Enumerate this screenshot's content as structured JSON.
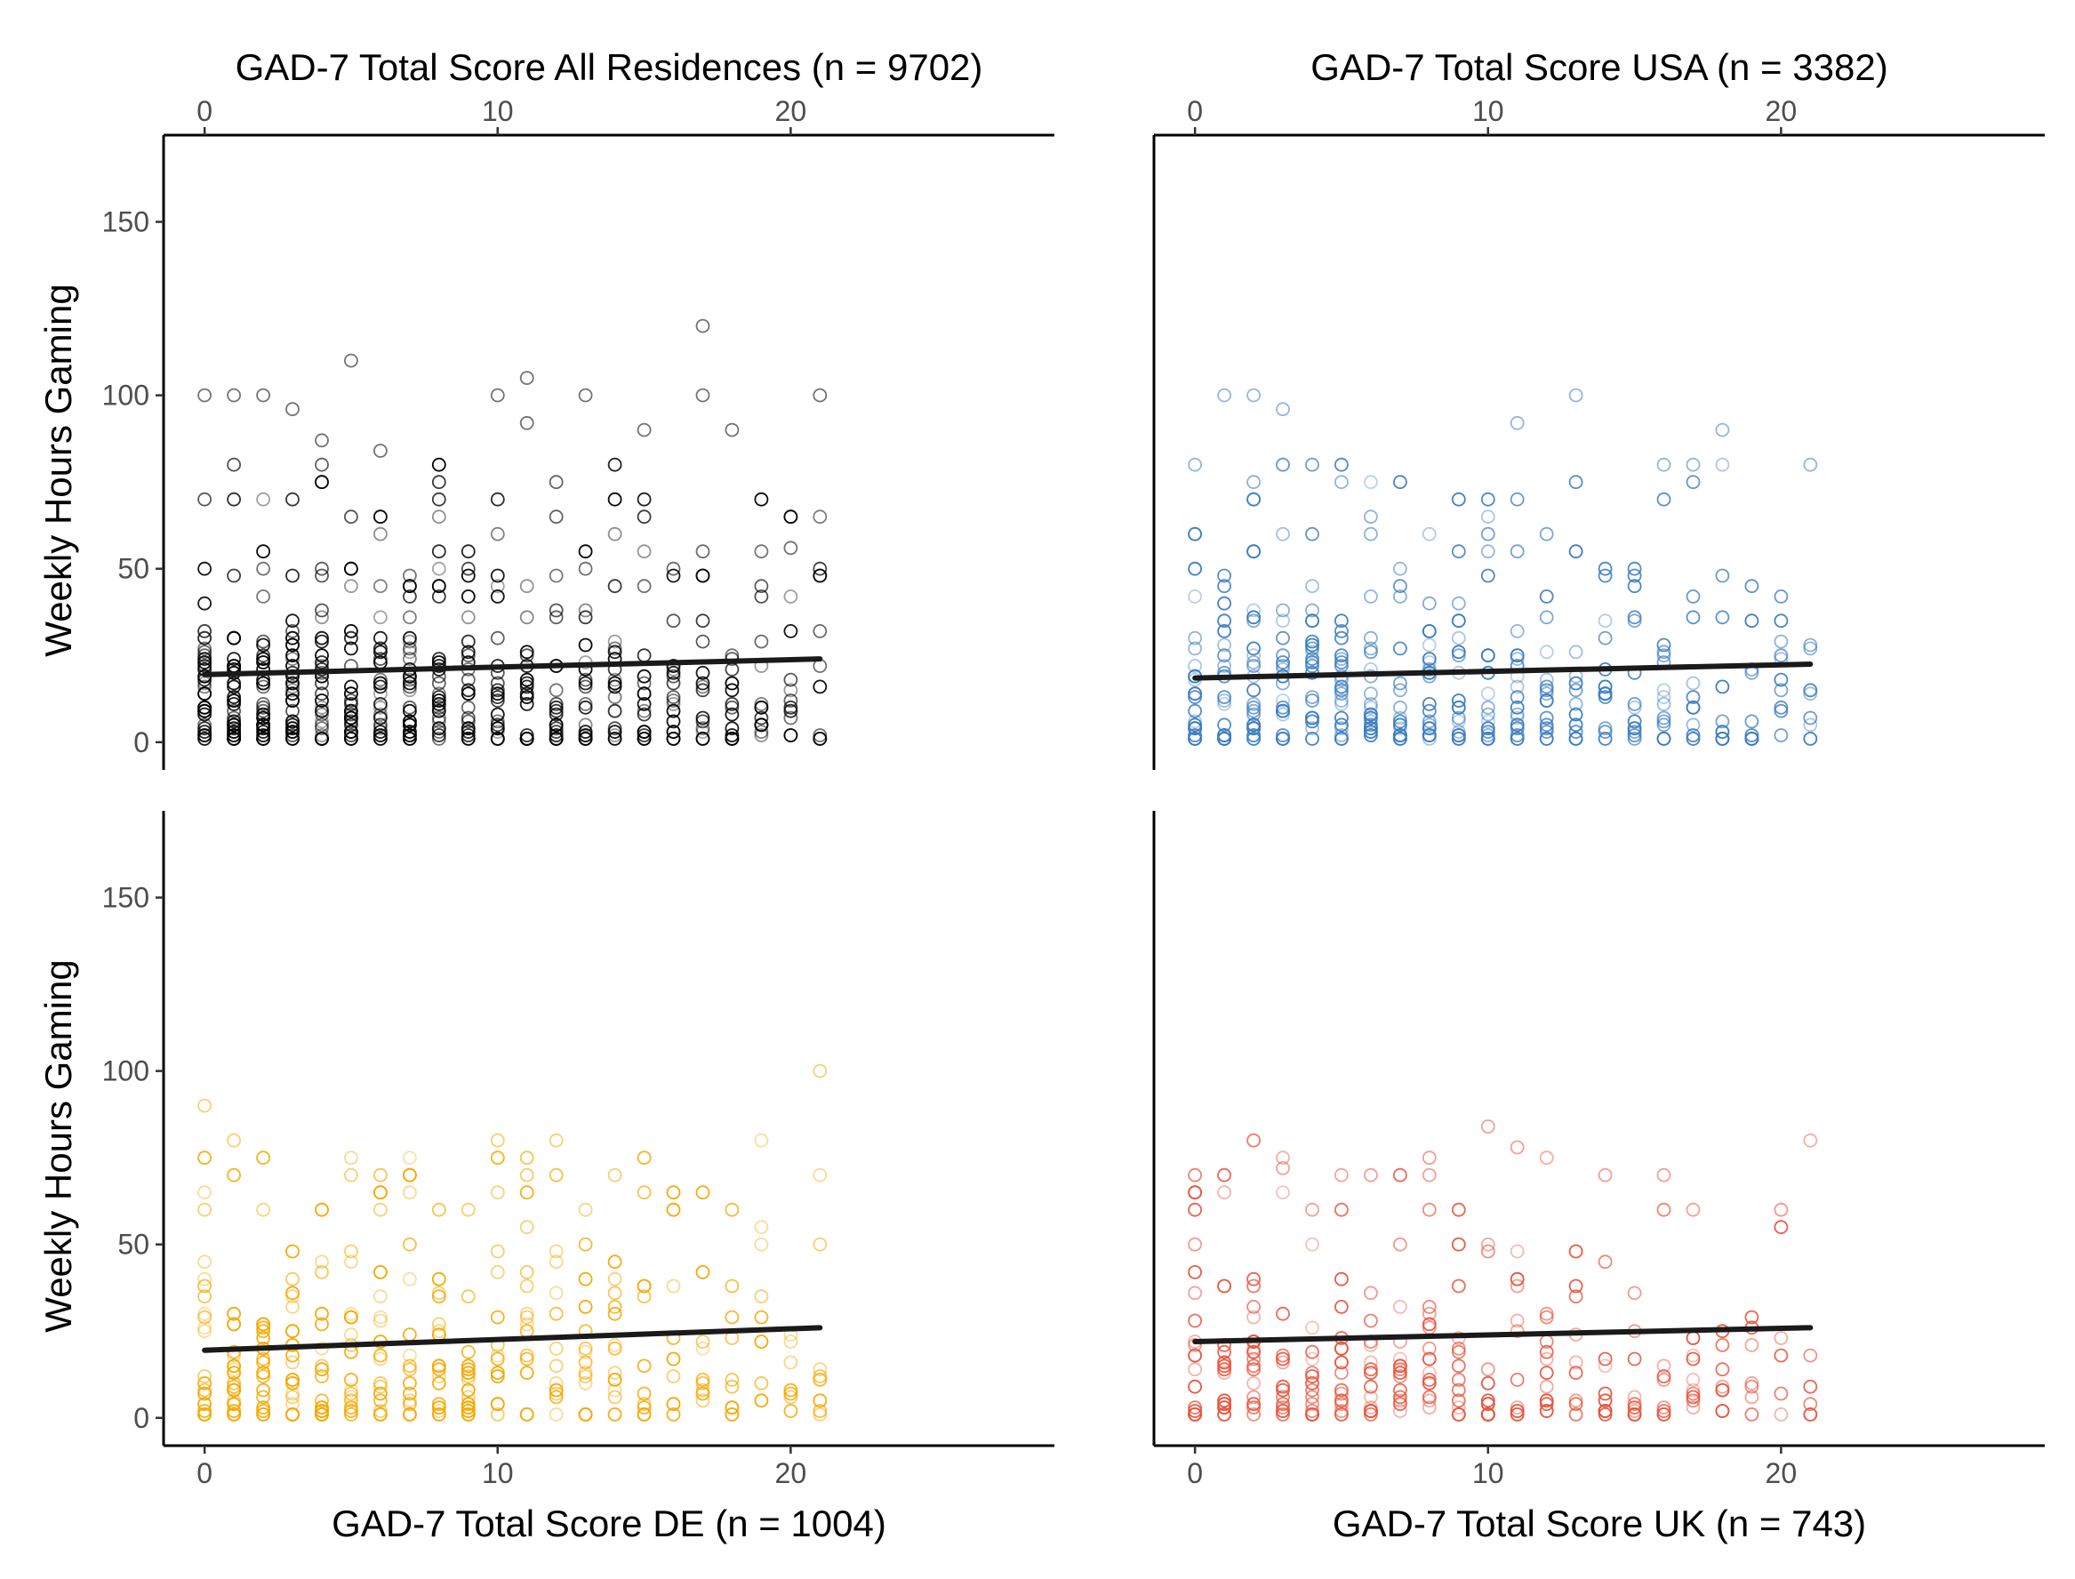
{
  "figure": {
    "y_label": "Weekly Hours Gaming"
  },
  "chart_data": [
    {
      "type": "scatter",
      "title": "GAD-7 Total Score All Residences (n = 9702)",
      "xlabel": "GAD-7 Total Score All Residences (n = 9702)",
      "ylabel": "Weekly Hours Gaming",
      "xlim": [
        -1.4,
        29
      ],
      "ylim": [
        -8,
        175
      ],
      "xticks": [
        0,
        10,
        20
      ],
      "yticks": [
        0,
        50,
        100,
        150
      ],
      "x_axis_position": "top",
      "color": "#000000",
      "trend": {
        "x": [
          0,
          21
        ],
        "y": [
          19.5,
          24
        ]
      },
      "outliers": [
        {
          "x": 0,
          "y": 100
        },
        {
          "x": 1,
          "y": 100
        },
        {
          "x": 2,
          "y": 100
        },
        {
          "x": 3,
          "y": 96
        },
        {
          "x": 5,
          "y": 110
        },
        {
          "x": 4,
          "y": 87
        },
        {
          "x": 6,
          "y": 84
        },
        {
          "x": 10,
          "y": 100
        },
        {
          "x": 11,
          "y": 105
        },
        {
          "x": 11,
          "y": 92
        },
        {
          "x": 13,
          "y": 100
        },
        {
          "x": 15,
          "y": 90
        },
        {
          "x": 17,
          "y": 120
        },
        {
          "x": 17,
          "y": 100
        },
        {
          "x": 18,
          "y": 90
        },
        {
          "x": 21,
          "y": 100
        },
        {
          "x": 20,
          "y": 56
        }
      ]
    },
    {
      "type": "scatter",
      "title": "GAD-7 Total Score USA (n = 3382)",
      "xlabel": "GAD-7 Total Score USA (n = 3382)",
      "ylabel": "",
      "xlim": [
        -1.4,
        29
      ],
      "ylim": [
        -8,
        175
      ],
      "xticks": [
        0,
        10,
        20
      ],
      "yticks": [],
      "x_axis_position": "top",
      "color": "#3a7cc0",
      "trend": {
        "x": [
          0,
          21
        ],
        "y": [
          18.5,
          22.5
        ]
      },
      "outliers": [
        {
          "x": 1,
          "y": 100
        },
        {
          "x": 2,
          "y": 100
        },
        {
          "x": 3,
          "y": 96
        },
        {
          "x": 13,
          "y": 100
        },
        {
          "x": 11,
          "y": 92
        },
        {
          "x": 18,
          "y": 90
        },
        {
          "x": 0,
          "y": 80
        },
        {
          "x": 21,
          "y": 80
        },
        {
          "x": 16,
          "y": 80
        },
        {
          "x": 17,
          "y": 80
        }
      ]
    },
    {
      "type": "scatter",
      "title": "",
      "xlabel": "GAD-7 Total Score DE (n = 1004)",
      "ylabel": "Weekly Hours Gaming",
      "xlim": [
        -1.4,
        29
      ],
      "ylim": [
        -8,
        175
      ],
      "xticks": [
        0,
        10,
        20
      ],
      "yticks": [
        0,
        50,
        100,
        150
      ],
      "x_axis_position": "bottom",
      "color": "#f5a800",
      "trend": {
        "x": [
          0,
          21
        ],
        "y": [
          19.5,
          26
        ]
      },
      "outliers": [
        {
          "x": 0,
          "y": 90
        },
        {
          "x": 1,
          "y": 80
        },
        {
          "x": 5,
          "y": 70
        },
        {
          "x": 12,
          "y": 80
        },
        {
          "x": 14,
          "y": 70
        },
        {
          "x": 21,
          "y": 100
        },
        {
          "x": 9,
          "y": 60
        },
        {
          "x": 0,
          "y": 60
        },
        {
          "x": 6,
          "y": 60
        },
        {
          "x": 21,
          "y": 50
        }
      ]
    },
    {
      "type": "scatter",
      "title": "",
      "xlabel": "GAD-7 Total Score UK (n = 743)",
      "ylabel": "",
      "xlim": [
        -1.4,
        29
      ],
      "ylim": [
        -8,
        175
      ],
      "xticks": [
        0,
        10,
        20
      ],
      "yticks": [],
      "x_axis_position": "bottom",
      "color": "#e8533c",
      "trend": {
        "x": [
          0,
          21
        ],
        "y": [
          22,
          26
        ]
      },
      "outliers": [
        {
          "x": 10,
          "y": 84
        },
        {
          "x": 11,
          "y": 78
        },
        {
          "x": 2,
          "y": 80
        },
        {
          "x": 3,
          "y": 72
        },
        {
          "x": 16,
          "y": 70
        },
        {
          "x": 17,
          "y": 60
        },
        {
          "x": 10,
          "y": 1
        },
        {
          "x": 0,
          "y": 70
        },
        {
          "x": 1,
          "y": 70
        },
        {
          "x": 6,
          "y": 70
        },
        {
          "x": 7,
          "y": 70
        },
        {
          "x": 8,
          "y": 70
        }
      ]
    }
  ]
}
